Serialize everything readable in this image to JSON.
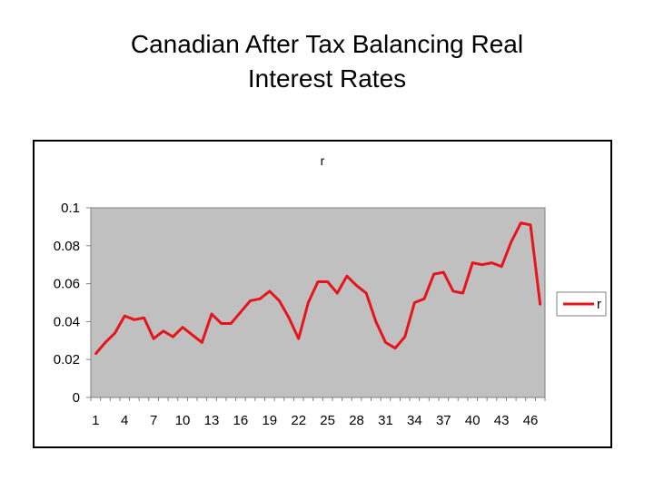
{
  "slide": {
    "title_line1": "Canadian After Tax Balancing Real",
    "title_line2": "Interest Rates"
  },
  "chart_data": {
    "type": "line",
    "title": "r",
    "xlabel": "",
    "ylabel": "",
    "ylim": [
      0,
      0.1
    ],
    "y_ticks": [
      "0",
      "0.02",
      "0.04",
      "0.06",
      "0.08",
      "0.1"
    ],
    "x_ticks": [
      "1",
      "4",
      "7",
      "10",
      "13",
      "16",
      "19",
      "22",
      "25",
      "28",
      "31",
      "34",
      "37",
      "40",
      "43",
      "46"
    ],
    "grid": false,
    "plot_background": "#c0c0c0",
    "legend_position": "right",
    "series": [
      {
        "name": "r",
        "color": "#e8141c",
        "x": [
          1,
          2,
          3,
          4,
          5,
          6,
          7,
          8,
          9,
          10,
          11,
          12,
          13,
          14,
          15,
          16,
          17,
          18,
          19,
          20,
          21,
          22,
          23,
          24,
          25,
          26,
          27,
          28,
          29,
          30,
          31,
          32,
          33,
          34,
          35,
          36,
          37,
          38,
          39,
          40,
          41,
          42,
          43,
          44,
          45,
          46,
          47
        ],
        "values": [
          0.023,
          0.029,
          0.034,
          0.043,
          0.041,
          0.042,
          0.031,
          0.035,
          0.032,
          0.037,
          0.033,
          0.029,
          0.044,
          0.039,
          0.039,
          0.045,
          0.051,
          0.052,
          0.056,
          0.051,
          0.042,
          0.031,
          0.05,
          0.061,
          0.061,
          0.055,
          0.064,
          0.059,
          0.055,
          0.04,
          0.029,
          0.026,
          0.032,
          0.05,
          0.052,
          0.065,
          0.066,
          0.056,
          0.055,
          0.071,
          0.07,
          0.071,
          0.069,
          0.082,
          0.092,
          0.091,
          0.049
        ]
      }
    ]
  }
}
